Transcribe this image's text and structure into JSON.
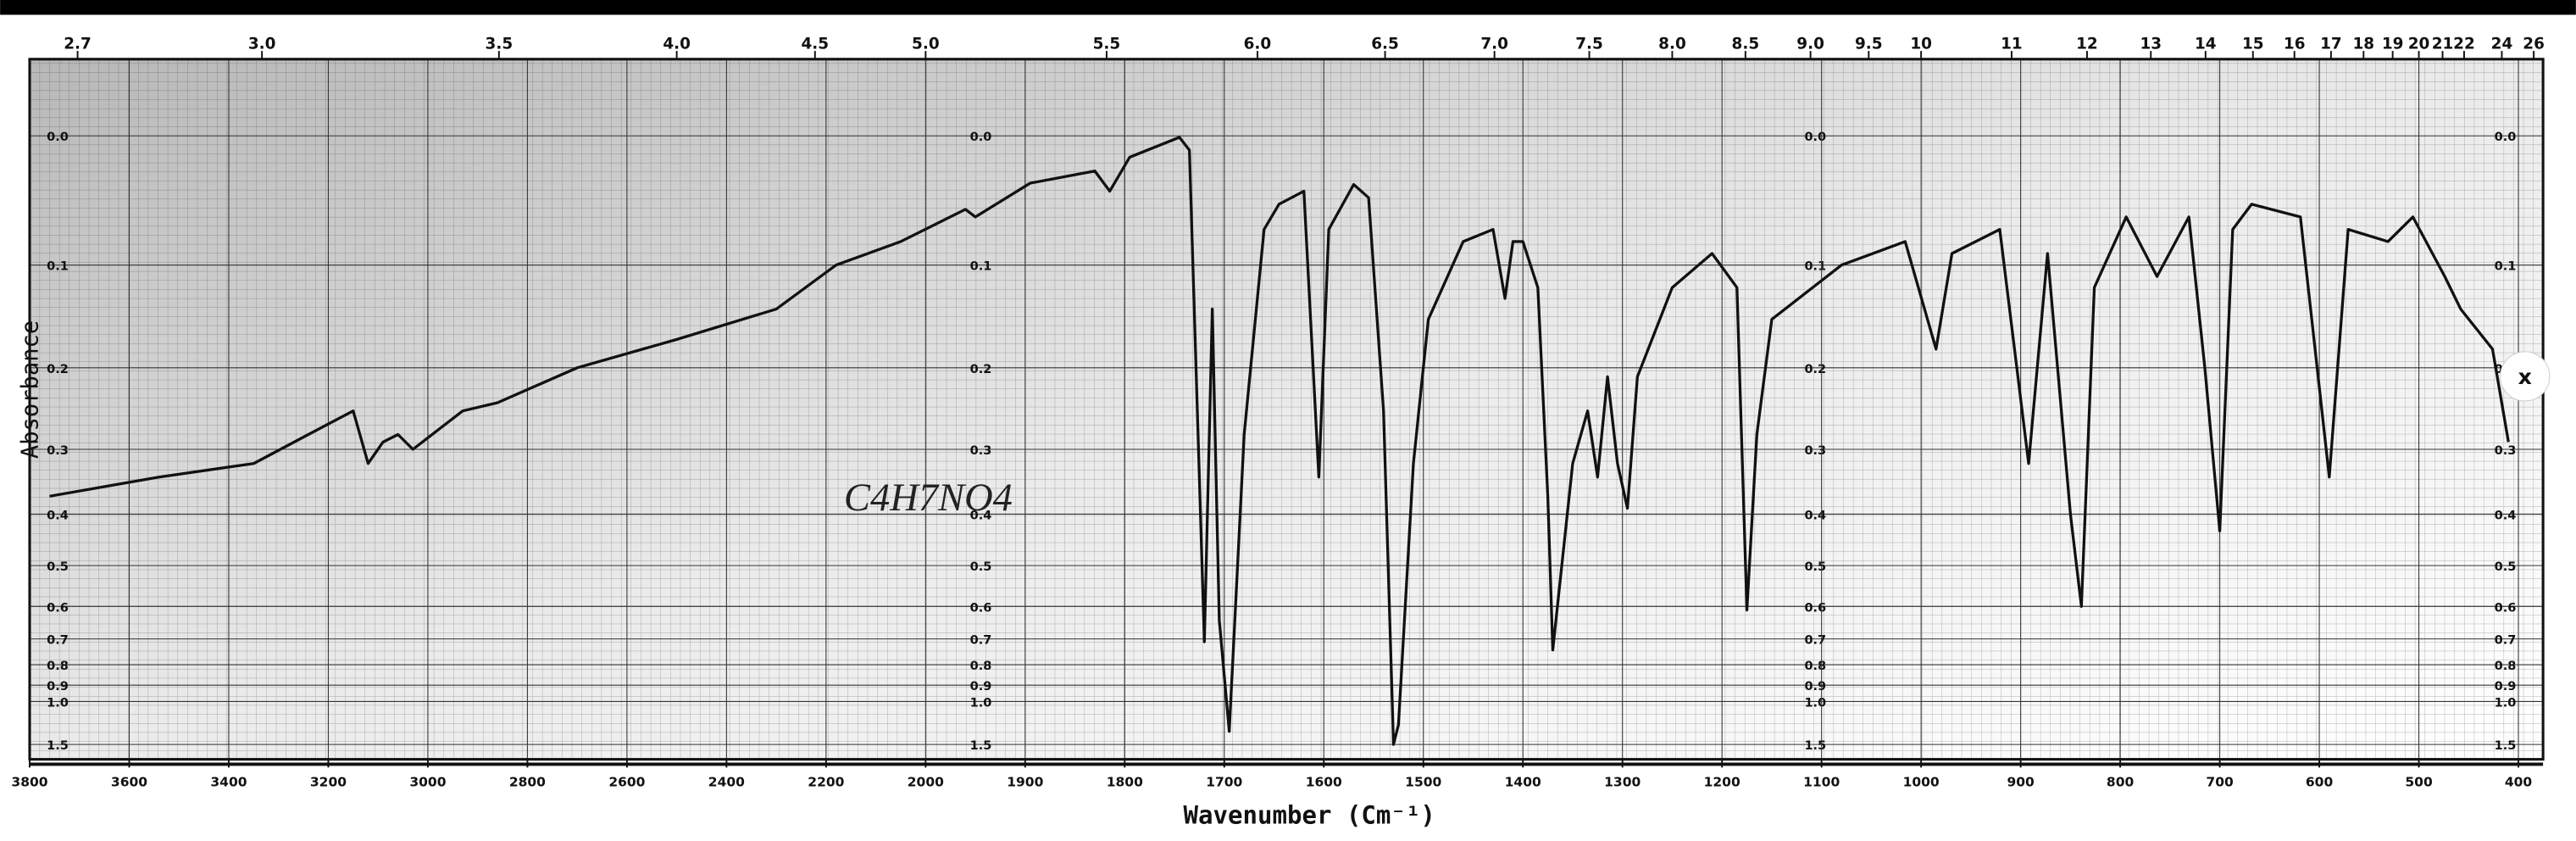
{
  "chart_data": {
    "type": "line",
    "x_label": "Wavenumber (Cm⁻¹)",
    "y_label": "Absorbance",
    "annotations": [
      "C4H7NO4",
      "x"
    ],
    "color": "#111111",
    "grid": true,
    "xlim": [
      3800,
      400
    ],
    "xticks": [
      3800,
      3600,
      3400,
      3200,
      3000,
      2800,
      2600,
      2400,
      2200,
      2000,
      1900,
      1800,
      1700,
      1600,
      1500,
      1400,
      1300,
      1200,
      1100,
      1000,
      900,
      800,
      700,
      600,
      500,
      400
    ],
    "x2ticks": [
      2.7,
      {
        "value": 3,
        "label": "3.0"
      },
      3.5,
      {
        "value": 4,
        "label": "4.0"
      },
      4.5,
      {
        "value": 5,
        "label": "5.0"
      },
      5.5,
      {
        "value": 6,
        "label": "6.0"
      },
      6.5,
      {
        "value": 7,
        "label": "7.0"
      },
      7.5,
      {
        "value": 8,
        "label": "8.0"
      },
      8.5,
      {
        "value": 9,
        "label": "9.0"
      },
      9.5,
      10,
      11,
      12,
      13,
      14,
      15,
      16,
      17,
      18,
      19,
      20,
      21,
      22,
      24,
      26
    ],
    "ylim": [
      -0.05,
      2.1
    ],
    "yticks": [
      {
        "value": 0,
        "label": "0.0"
      },
      0.1,
      0.2,
      0.3,
      0.4,
      0.5,
      0.6,
      0.7,
      0.8,
      0.9,
      {
        "value": 1,
        "label": "1.0"
      },
      1.5
    ],
    "x": [
      3760,
      3540,
      3350,
      3240,
      3150,
      3120,
      3090,
      3060,
      3030,
      2930,
      2860,
      2700,
      2500,
      2300,
      2180,
      2050,
      1960,
      1950,
      1895,
      1830,
      1815,
      1795,
      1745,
      1735,
      1720,
      1712,
      1705,
      1695,
      1680,
      1660,
      1645,
      1620,
      1605,
      1595,
      1570,
      1555,
      1540,
      1530,
      1525,
      1510,
      1495,
      1460,
      1430,
      1418,
      1410,
      1400,
      1385,
      1375,
      1370,
      1350,
      1335,
      1325,
      1315,
      1305,
      1295,
      1285,
      1250,
      1210,
      1185,
      1175,
      1165,
      1150,
      1080,
      1016,
      985,
      969,
      921,
      892,
      873,
      850,
      839,
      826,
      794,
      763,
      731,
      715,
      700,
      687,
      668,
      619,
      590,
      571,
      531,
      506,
      474,
      458,
      426,
      410
    ],
    "values": [
      0.37,
      0.34,
      0.32,
      0.28,
      0.25,
      0.32,
      0.29,
      0.28,
      0.3,
      0.25,
      0.24,
      0.2,
      0.17,
      0.14,
      0.1,
      0.08,
      0.054,
      0.06,
      0.034,
      0.025,
      0.04,
      0.015,
      0.001,
      0.01,
      0.71,
      0.14,
      0.64,
      1.28,
      0.28,
      0.07,
      0.05,
      0.04,
      0.34,
      0.07,
      0.035,
      0.045,
      0.25,
      1.5,
      1.2,
      0.32,
      0.15,
      0.08,
      0.07,
      0.13,
      0.08,
      0.08,
      0.12,
      0.37,
      0.74,
      0.32,
      0.25,
      0.34,
      0.21,
      0.32,
      0.39,
      0.21,
      0.12,
      0.09,
      0.12,
      0.61,
      0.28,
      0.15,
      0.1,
      0.08,
      0.18,
      0.09,
      0.07,
      0.32,
      0.09,
      0.4,
      0.6,
      0.12,
      0.06,
      0.11,
      0.06,
      0.2,
      0.43,
      0.07,
      0.05,
      0.06,
      0.34,
      0.07,
      0.08,
      0.06,
      0.11,
      0.14,
      0.18,
      0.29
    ]
  }
}
